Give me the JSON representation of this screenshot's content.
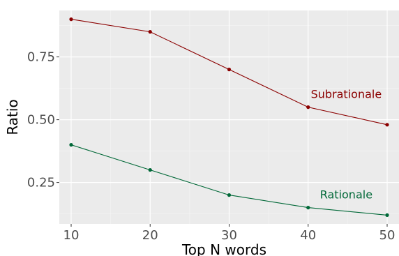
{
  "chart_data": {
    "type": "line",
    "x": [
      10,
      20,
      30,
      40,
      50
    ],
    "series": [
      {
        "name": "Subrationale",
        "color": "#8b0000",
        "values": [
          0.9,
          0.85,
          0.7,
          0.55,
          0.48
        ]
      },
      {
        "name": "Rationale",
        "color": "#006837",
        "values": [
          0.4,
          0.3,
          0.2,
          0.15,
          0.12
        ]
      }
    ],
    "title": "",
    "xlabel": "Top N words",
    "ylabel": "Ratio",
    "xlim": [
      8.5,
      51.5
    ],
    "ylim": [
      0.085,
      0.935
    ],
    "xticks": [
      10,
      20,
      30,
      40,
      50
    ],
    "yticks": [
      0.25,
      0.5,
      0.75
    ],
    "ytick_labels": [
      "0.25",
      "0.50",
      "0.75"
    ],
    "grid": true,
    "legend": "direct labels"
  }
}
